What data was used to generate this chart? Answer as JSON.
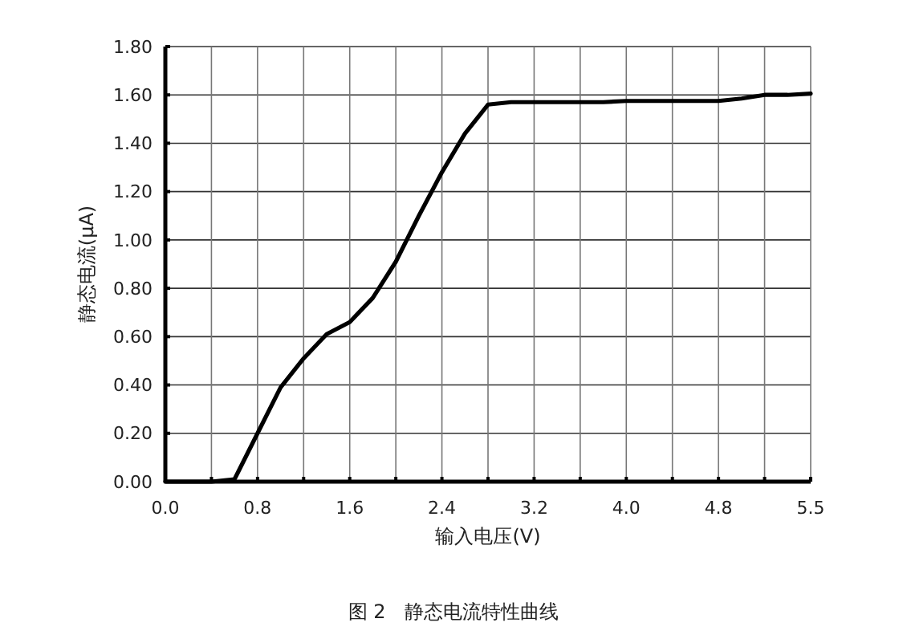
{
  "chart_data": {
    "type": "line",
    "xlabel": "输入电压(V)",
    "ylabel": "静态电流(μA)",
    "categories": [
      "0.0",
      null,
      null,
      null,
      "0.8",
      null,
      null,
      null,
      "1.6",
      null,
      null,
      null,
      "2.4",
      null,
      null,
      null,
      "3.2",
      null,
      null,
      null,
      "4.0",
      null,
      null,
      null,
      "4.8",
      null,
      null,
      null,
      "5.5"
    ],
    "series": [
      {
        "color": "#000000",
        "values": [
          0,
          0,
          0,
          0.01,
          0.2,
          0.39,
          0.51,
          0.61,
          0.66,
          0.76,
          0.91,
          1.1,
          1.28,
          1.44,
          1.56,
          1.57,
          1.57,
          1.57,
          1.57,
          1.57,
          1.575,
          1.575,
          1.575,
          1.575,
          1.575,
          1.585,
          1.6,
          1.6,
          1.605
        ]
      }
    ],
    "ylim": [
      0,
      1.8
    ],
    "yticks": [
      {
        "value": 0,
        "label": "0.00"
      },
      {
        "value": 0.2,
        "label": "0.20"
      },
      {
        "value": 0.4,
        "label": "0.40"
      },
      {
        "value": 0.6,
        "label": "0.60"
      },
      {
        "value": 0.8,
        "label": "0.80"
      },
      {
        "value": 1,
        "label": "1.00"
      },
      {
        "value": 1.2,
        "label": "1.20"
      },
      {
        "value": 1.4,
        "label": "1.40"
      },
      {
        "value": 1.6,
        "label": "1.60"
      },
      {
        "value": 1.8,
        "label": "1.80"
      }
    ],
    "grid": true,
    "marker": "none",
    "line_style": "solid",
    "annotations": [
      "图 2　静态电流特性曲线"
    ]
  }
}
